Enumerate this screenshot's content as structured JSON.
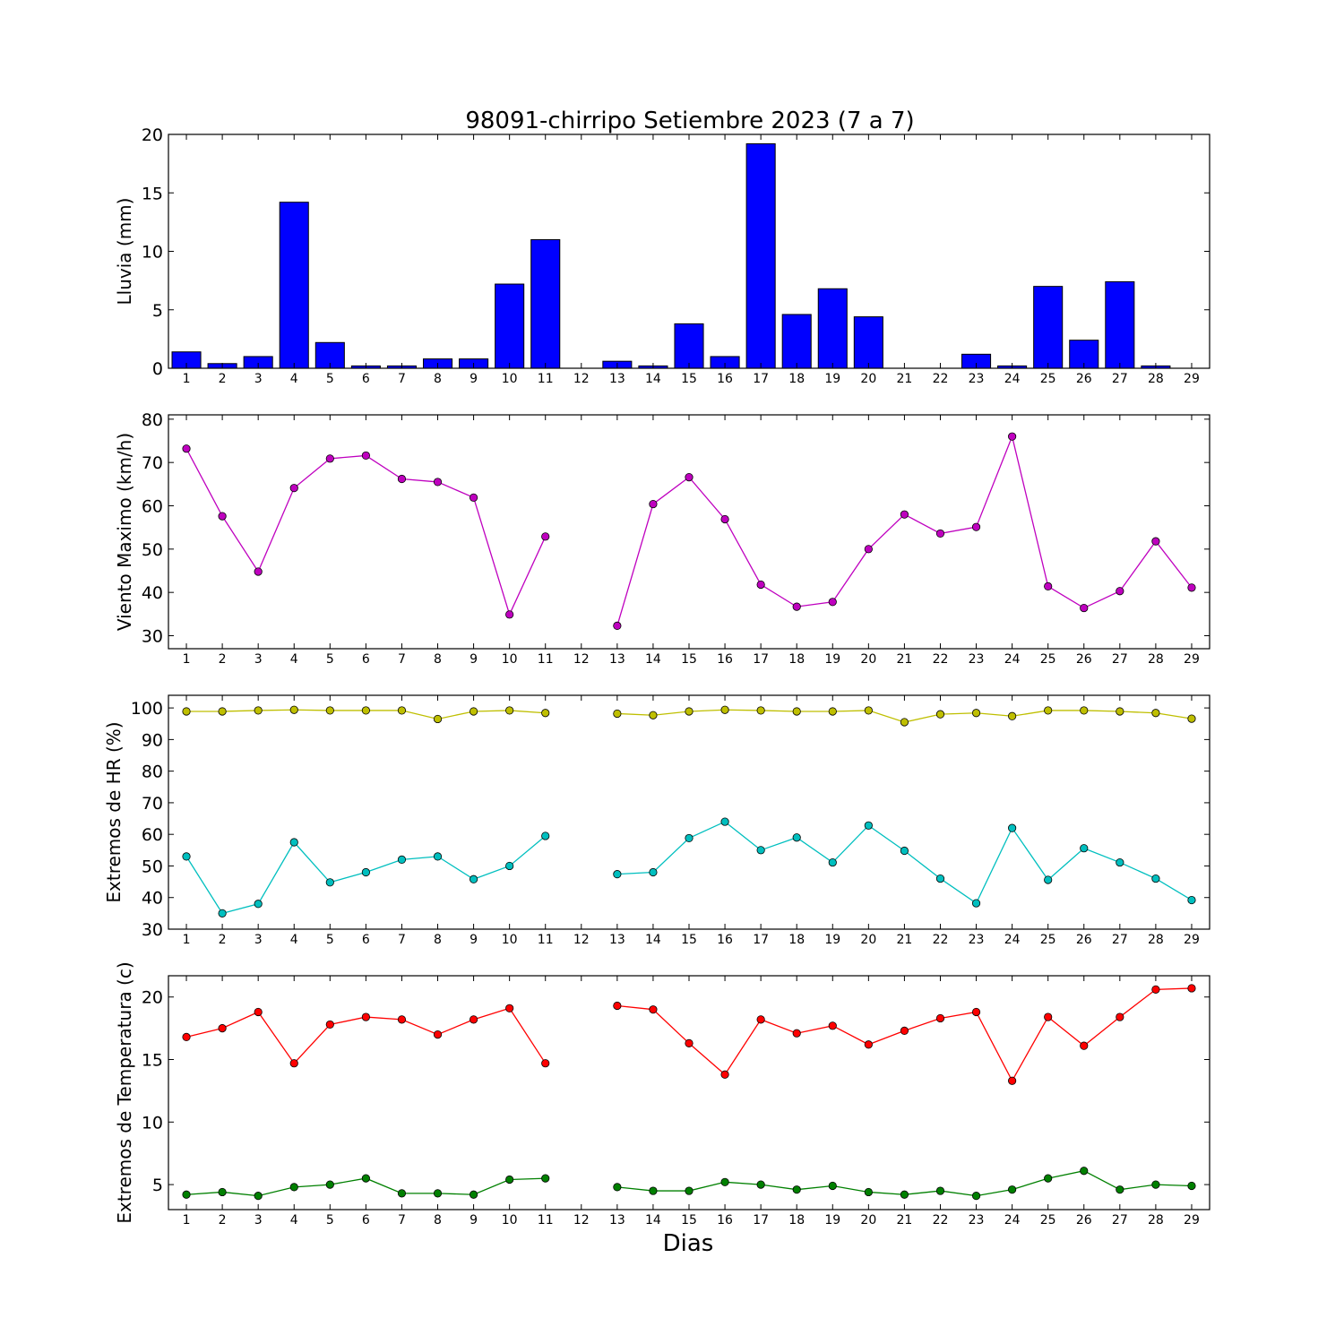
{
  "chart_data": [
    {
      "type": "bar",
      "title": "98091-chirripo Setiembre 2023  (7 a 7)",
      "xlabel": "",
      "ylabel": "Lluvia (mm)",
      "categories": [
        "1",
        "2",
        "3",
        "4",
        "5",
        "6",
        "7",
        "8",
        "9",
        "10",
        "11",
        "12",
        "13",
        "14",
        "15",
        "16",
        "17",
        "18",
        "19",
        "20",
        "21",
        "22",
        "23",
        "24",
        "25",
        "26",
        "27",
        "28",
        "29"
      ],
      "values": [
        1.4,
        0.4,
        1.0,
        14.2,
        2.2,
        0.2,
        0.2,
        0.8,
        0.8,
        7.2,
        11.0,
        0.0,
        0.6,
        0.2,
        3.8,
        1.0,
        19.2,
        4.6,
        6.8,
        4.4,
        0.0,
        0.0,
        1.2,
        0.2,
        7.0,
        2.4,
        7.4,
        0.2,
        0.0
      ],
      "ylim": [
        0,
        20
      ],
      "yticks": [
        0,
        5,
        10,
        15,
        20
      ],
      "color": "#0000ff"
    },
    {
      "type": "line",
      "title": "",
      "xlabel": "",
      "ylabel": "Viento Maximo (km/h)",
      "categories": [
        "1",
        "2",
        "3",
        "4",
        "5",
        "6",
        "7",
        "8",
        "9",
        "10",
        "11",
        "12",
        "13",
        "14",
        "15",
        "16",
        "17",
        "18",
        "19",
        "20",
        "21",
        "22",
        "23",
        "24",
        "25",
        "26",
        "27",
        "28",
        "29"
      ],
      "series": [
        {
          "values": [
            73.2,
            57.6,
            44.8,
            64.1,
            70.9,
            71.6,
            66.2,
            65.5,
            61.9,
            34.9,
            52.9,
            null,
            32.3,
            60.4,
            66.6,
            56.9,
            41.8,
            36.7,
            37.8,
            50.0,
            58.0,
            53.6,
            55.1,
            76.0,
            41.4,
            36.4,
            40.3,
            51.8,
            41.1
          ],
          "color": "#bf00bf"
        }
      ],
      "ylim": [
        27,
        81
      ],
      "yticks": [
        30,
        40,
        50,
        60,
        70,
        80
      ]
    },
    {
      "type": "line",
      "title": "",
      "xlabel": "",
      "ylabel": "Extremos de HR (%)",
      "categories": [
        "1",
        "2",
        "3",
        "4",
        "5",
        "6",
        "7",
        "8",
        "9",
        "10",
        "11",
        "12",
        "13",
        "14",
        "15",
        "16",
        "17",
        "18",
        "19",
        "20",
        "21",
        "22",
        "23",
        "24",
        "25",
        "26",
        "27",
        "28",
        "29"
      ],
      "series": [
        {
          "values": [
            98.9,
            98.9,
            99.2,
            99.4,
            99.2,
            99.2,
            99.2,
            96.5,
            98.9,
            99.2,
            98.4,
            null,
            98.2,
            97.7,
            98.9,
            99.4,
            99.2,
            98.9,
            98.9,
            99.2,
            95.5,
            98.0,
            98.4,
            97.4,
            99.2,
            99.2,
            98.9,
            98.4,
            96.6
          ],
          "color": "#bfbf00"
        },
        {
          "values": [
            53.0,
            35.0,
            38.0,
            57.5,
            44.8,
            48.0,
            52.0,
            53.0,
            45.8,
            50.0,
            59.5,
            null,
            47.4,
            48.0,
            58.8,
            64.0,
            55.0,
            59.0,
            51.1,
            62.8,
            54.8,
            46.0,
            38.2,
            62.0,
            45.6,
            55.6,
            51.1,
            46.0,
            39.2
          ],
          "color": "#00bfbf"
        }
      ],
      "ylim": [
        30,
        104
      ],
      "yticks": [
        30,
        40,
        50,
        60,
        70,
        80,
        90,
        100
      ]
    },
    {
      "type": "line",
      "title": "",
      "xlabel": "Dias",
      "ylabel": "Extremos de Temperatura (c)",
      "categories": [
        "1",
        "2",
        "3",
        "4",
        "5",
        "6",
        "7",
        "8",
        "9",
        "10",
        "11",
        "12",
        "13",
        "14",
        "15",
        "16",
        "17",
        "18",
        "19",
        "20",
        "21",
        "22",
        "23",
        "24",
        "25",
        "26",
        "27",
        "28",
        "29"
      ],
      "series": [
        {
          "values": [
            16.8,
            17.5,
            18.8,
            14.7,
            17.8,
            18.4,
            18.2,
            17.0,
            18.2,
            19.1,
            14.7,
            null,
            19.3,
            19.0,
            16.3,
            13.8,
            18.2,
            17.1,
            17.7,
            16.2,
            17.3,
            18.3,
            18.8,
            13.3,
            18.4,
            16.1,
            18.4,
            20.6,
            20.7
          ],
          "color": "#ff0000"
        },
        {
          "values": [
            4.2,
            4.4,
            4.1,
            4.8,
            5.0,
            5.5,
            4.3,
            4.3,
            4.2,
            5.4,
            5.5,
            null,
            4.8,
            4.5,
            4.5,
            5.2,
            5.0,
            4.6,
            4.9,
            4.4,
            4.2,
            4.5,
            4.1,
            4.6,
            5.5,
            6.1,
            4.6,
            5.0,
            4.9
          ],
          "color": "#008000"
        }
      ],
      "ylim": [
        3,
        21.7
      ],
      "yticks": [
        5,
        10,
        15,
        20
      ]
    }
  ]
}
